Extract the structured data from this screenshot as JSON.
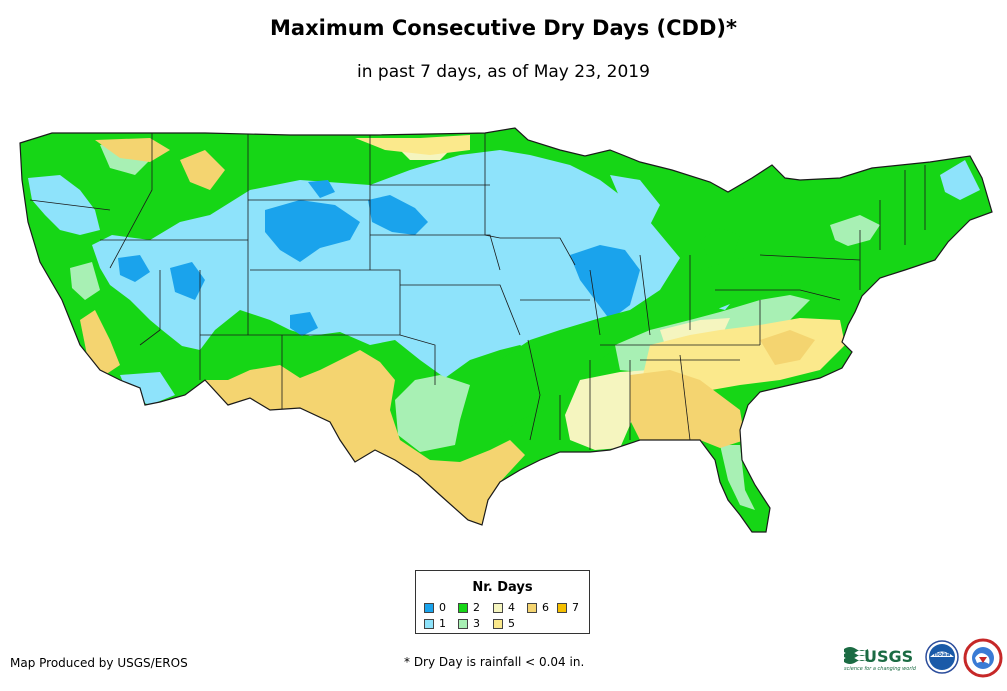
{
  "header": {
    "title": "Maximum Consecutive Dry Days (CDD)*",
    "subtitle": "in past 7 days, as of May 23, 2019"
  },
  "legend": {
    "title": "Nr. Days",
    "items": [
      {
        "label": "0",
        "color": "#1aa3ec"
      },
      {
        "label": "1",
        "color": "#8ee3fb"
      },
      {
        "label": "2",
        "color": "#16d616"
      },
      {
        "label": "3",
        "color": "#a8f0b4"
      },
      {
        "label": "4",
        "color": "#f5f5bf"
      },
      {
        "label": "5",
        "color": "#fbe98c"
      },
      {
        "label": "6",
        "color": "#f4d470"
      },
      {
        "label": "7",
        "color": "#f5bf00"
      }
    ]
  },
  "footer": {
    "credit": "Map Produced by USGS/EROS",
    "footnote": "* Dry Day is rainfall < 0.04 in.",
    "usgs_logo_text": "USGS",
    "usgs_tagline": "science for a changing world",
    "noaa_text": "noaa"
  }
}
